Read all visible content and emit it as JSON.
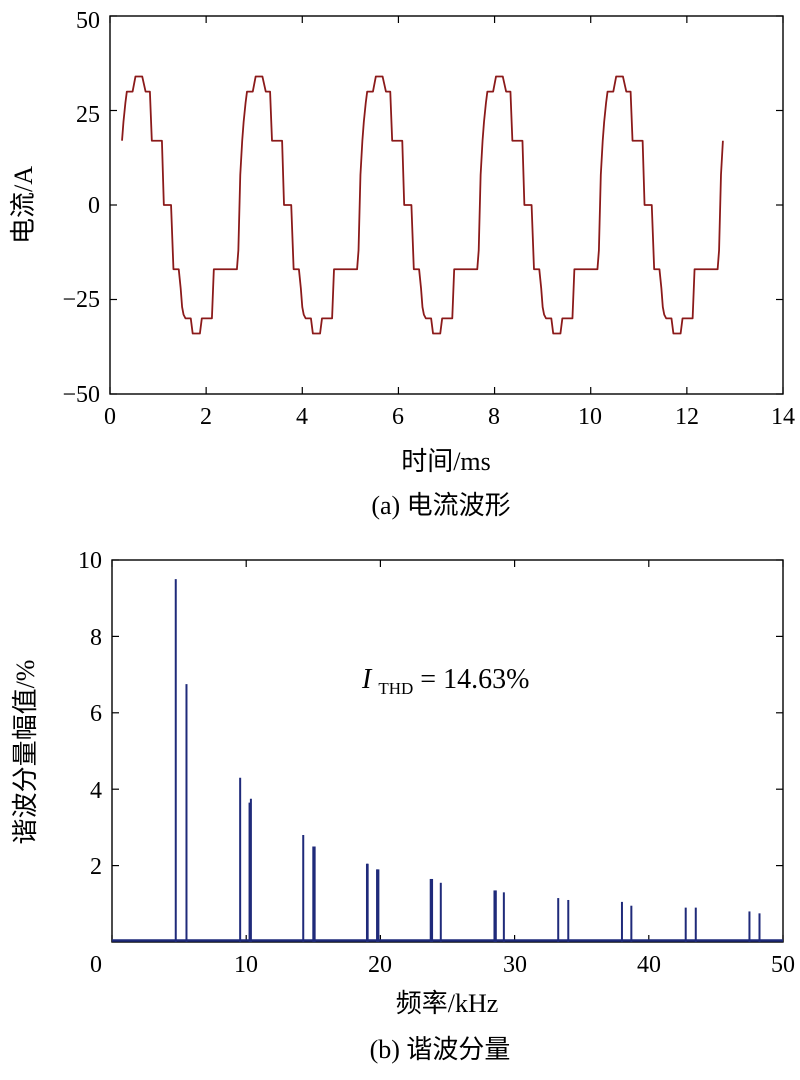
{
  "chart_data": [
    {
      "type": "line",
      "title": "(a) 电流波形",
      "xlabel": "时间/ms",
      "ylabel": "电流/A",
      "xlim": [
        0,
        14
      ],
      "ylim": [
        -50,
        50
      ],
      "xticks": [
        "0",
        "2",
        "4",
        "6",
        "8",
        "10",
        "12",
        "14"
      ],
      "yticks": [
        "50",
        "25",
        "0",
        "−25",
        "−50"
      ],
      "series": [
        {
          "name": "current",
          "color": "#8b1a1a",
          "period_ms": 2.5,
          "start_ms": 0.25,
          "end_ms": 12.75,
          "cycle_ms": [
            0,
            0.03,
            0.07,
            0.1,
            0.22,
            0.28,
            0.31,
            0.42,
            0.49,
            0.58,
            0.62,
            0.83,
            0.87,
            1.02,
            1.07,
            1.18,
            1.22,
            1.25,
            1.28,
            1.32,
            1.43,
            1.47,
            1.62,
            1.66,
            1.87,
            1.91,
            2.0,
            2.07,
            2.18,
            2.21,
            2.27,
            2.39,
            2.42,
            2.46,
            2.5
          ],
          "cycle_a": [
            17,
            22,
            27,
            30,
            30,
            34,
            34,
            34,
            30,
            30,
            17,
            17,
            0,
            0,
            -17,
            -17,
            -22,
            -27,
            -29,
            -30,
            -30,
            -34,
            -34,
            -30,
            -30,
            -17,
            -17,
            -17,
            -17,
            -17,
            -17,
            -17,
            -12,
            8,
            17
          ]
        }
      ]
    },
    {
      "type": "bar",
      "title": "(b) 谐波分量",
      "xlabel": "频率/kHz",
      "ylabel": "谐波分量幅值/%",
      "xlim": [
        0,
        50
      ],
      "ylim": [
        0,
        10
      ],
      "xticks": [
        "0",
        "10",
        "20",
        "30",
        "40",
        "50"
      ],
      "yticks": [
        "10",
        "8",
        "6",
        "4",
        "2"
      ],
      "annotation": {
        "symbol": "I",
        "subscript": "THD",
        "text": "= 14.63%"
      },
      "series": [
        {
          "name": "harmonics",
          "color": "#1f2a7a",
          "freq_khz": [
            4.75,
            5.55,
            9.55,
            10.25,
            10.35,
            14.25,
            15.0,
            15.1,
            19.0,
            19.05,
            19.75,
            19.85,
            23.75,
            23.85,
            24.5,
            28.5,
            28.6,
            29.2,
            33.25,
            34.0,
            38.0,
            38.7,
            42.75,
            43.5,
            47.5,
            48.25
          ],
          "amplitude": [
            9.5,
            6.75,
            4.3,
            3.65,
            3.75,
            2.8,
            2.5,
            2.5,
            2.05,
            2.05,
            1.9,
            1.9,
            1.65,
            1.65,
            1.55,
            1.35,
            1.35,
            1.3,
            1.15,
            1.1,
            1.05,
            0.95,
            0.9,
            0.9,
            0.8,
            0.75
          ]
        }
      ]
    }
  ]
}
